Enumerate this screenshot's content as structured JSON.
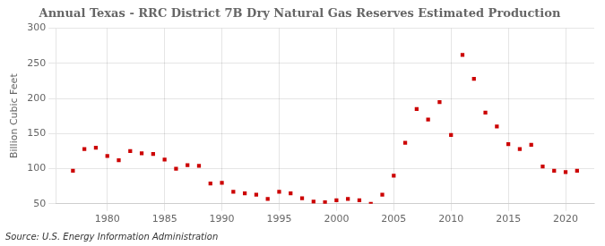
{
  "chart_data": {
    "type": "scatter",
    "title": "Annual Texas - RRC District 7B Dry Natural Gas Reserves Estimated Production",
    "ylabel": "Billion Cubic Feet",
    "annotations": [
      "Source: U.S. Energy Information Administration"
    ],
    "x": [
      1977,
      1978,
      1979,
      1980,
      1981,
      1982,
      1983,
      1984,
      1985,
      1986,
      1987,
      1988,
      1989,
      1990,
      1991,
      1992,
      1993,
      1994,
      1995,
      1996,
      1997,
      1998,
      1999,
      2000,
      2001,
      2002,
      2003,
      2004,
      2005,
      2006,
      2007,
      2008,
      2009,
      2010,
      2011,
      2012,
      2013,
      2014,
      2015,
      2016,
      2017,
      2018,
      2019,
      2020,
      2021
    ],
    "values": [
      97,
      128,
      130,
      118,
      112,
      125,
      122,
      121,
      113,
      100,
      105,
      104,
      79,
      80,
      67,
      65,
      63,
      57,
      67,
      65,
      58,
      53,
      52,
      55,
      57,
      55,
      50,
      63,
      90,
      137,
      185,
      170,
      195,
      148,
      262,
      228,
      180,
      160,
      135,
      128,
      134,
      103,
      97,
      95,
      97
    ],
    "color": "#cc0000",
    "marker": "square",
    "xlim": [
      1975.5,
      2022.5
    ],
    "ylim": [
      50,
      300
    ],
    "xticks": [
      1980,
      1985,
      1990,
      1995,
      2000,
      2005,
      2010,
      2015,
      2020
    ],
    "yticks": [
      50,
      100,
      150,
      200,
      250,
      300
    ],
    "grid": true
  }
}
